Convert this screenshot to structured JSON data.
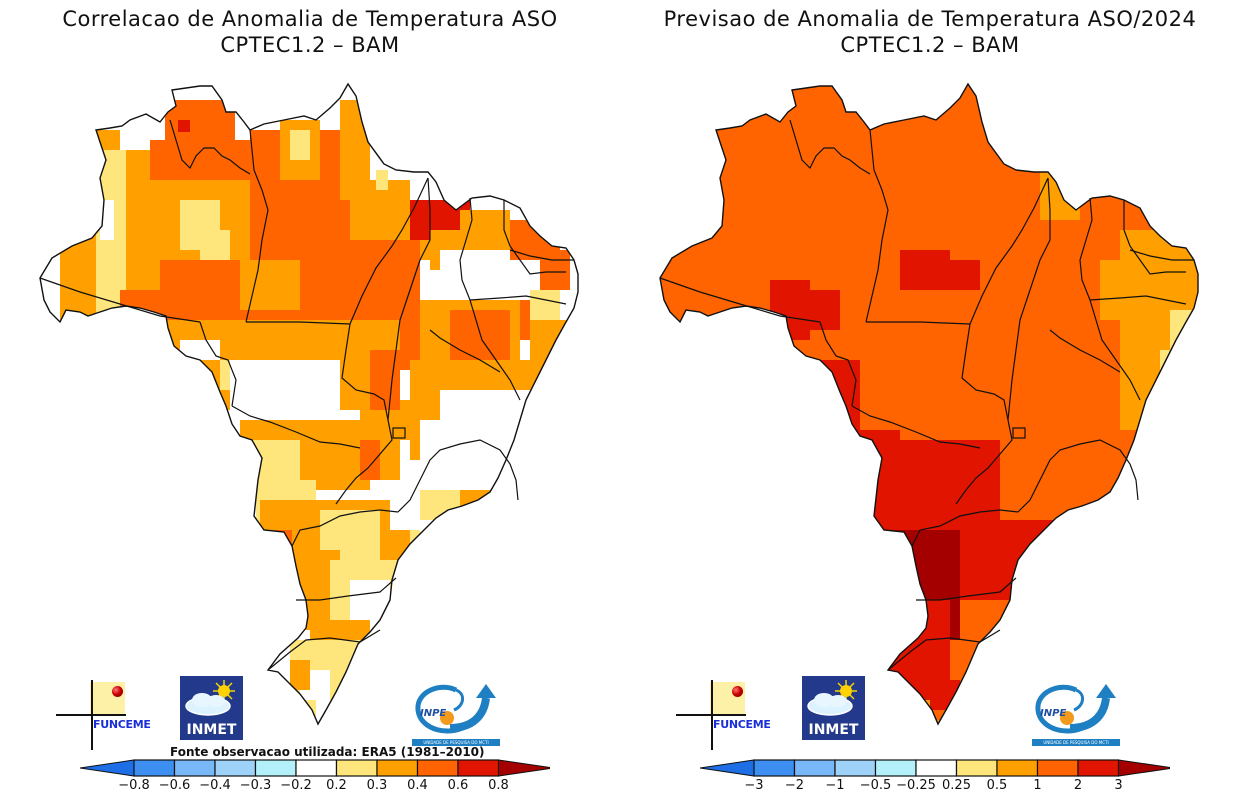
{
  "chart_data": [
    {
      "type": "heatmap",
      "title": "Correlacao de Anomalia de Temperatura ASO",
      "subtitle": "CPTEC1.2 - BAM",
      "region": "Brazil",
      "variable": "correlation of temperature anomaly",
      "note": "Fonte observacao utilizada: ERA5 (1981-2010)",
      "colorbar": {
        "ticks": [
          "-0.8",
          "-0.6",
          "-0.4",
          "-0.3",
          "-0.2",
          "0.2",
          "0.3",
          "0.4",
          "0.6",
          "0.8"
        ],
        "bins": [
          {
            "range": "< -0.8",
            "color": "#1e6ee6"
          },
          {
            "range": "-0.8 to -0.6",
            "color": "#3c8ff0"
          },
          {
            "range": "-0.6 to -0.4",
            "color": "#78b8f8"
          },
          {
            "range": "-0.4 to -0.3",
            "color": "#9ed2f8"
          },
          {
            "range": "-0.3 to -0.2",
            "color": "#b4f0fa"
          },
          {
            "range": "-0.2 to 0.2",
            "color": "#ffffff"
          },
          {
            "range": "0.2 to 0.3",
            "color": "#fee67c"
          },
          {
            "range": "0.3 to 0.4",
            "color": "#ffa000"
          },
          {
            "range": "0.4 to 0.6",
            "color": "#ff6400"
          },
          {
            "range": "0.6 to 0.8",
            "color": "#e11400"
          },
          {
            "range": "> 0.8",
            "color": "#a50000"
          }
        ]
      },
      "regions": [
        {
          "area": "Amazonas (north/central)",
          "bin": "0.3 to 0.4"
        },
        {
          "area": "Amazonas (west edge)",
          "bin": "0.2 to 0.3"
        },
        {
          "area": "Acre",
          "bin": "-0.2 to 0.2"
        },
        {
          "area": "Roraima",
          "bin": "0.4 to 0.6"
        },
        {
          "area": "Para",
          "bin": "0.4 to 0.6"
        },
        {
          "area": "Amapa",
          "bin": "0.3 to 0.4"
        },
        {
          "area": "Maranhao (north coast)",
          "bin": "0.6 to 0.8"
        },
        {
          "area": "Piaui / Ceara interior",
          "bin": "-0.2 to 0.2"
        },
        {
          "area": "Mato Grosso (north)",
          "bin": "0.3 to 0.4"
        },
        {
          "area": "Mato Grosso (central)",
          "bin": "-0.2 to 0.2"
        },
        {
          "area": "Goias / Tocantins",
          "bin": "0.3 to 0.4"
        },
        {
          "area": "Minas Gerais",
          "bin": "-0.2 to 0.2"
        },
        {
          "area": "Mato Grosso do Sul",
          "bin": "0.3 to 0.4"
        },
        {
          "area": "Sao Paulo",
          "bin": "0.2 to 0.3"
        },
        {
          "area": "Parana / Santa Catarina",
          "bin": "0.2 to 0.3"
        },
        {
          "area": "Rio Grande do Sul",
          "bin": "0.2 to 0.3"
        }
      ]
    },
    {
      "type": "heatmap",
      "title": "Previsao de Anomalia de Temperatura ASO/2024",
      "subtitle": "CPTEC1.2 - BAM",
      "region": "Brazil",
      "variable": "forecast temperature anomaly",
      "colorbar": {
        "ticks": [
          "-3",
          "-2",
          "-1",
          "-0.5",
          "-0.25",
          "0.25",
          "0.5",
          "1",
          "2",
          "3"
        ],
        "bins": [
          {
            "range": "< -3",
            "color": "#1e6ee6"
          },
          {
            "range": "-3 to -2",
            "color": "#3c8ff0"
          },
          {
            "range": "-2 to -1",
            "color": "#78b8f8"
          },
          {
            "range": "-1 to -0.5",
            "color": "#9ed2f8"
          },
          {
            "range": "-0.5 to -0.25",
            "color": "#b4f0fa"
          },
          {
            "range": "-0.25 to 0.25",
            "color": "#ffffff"
          },
          {
            "range": "0.25 to 0.5",
            "color": "#fee67c"
          },
          {
            "range": "0.5 to 1",
            "color": "#ffa000"
          },
          {
            "range": "1 to 2",
            "color": "#ff6400"
          },
          {
            "range": "2 to 3",
            "color": "#e11400"
          },
          {
            "range": "> 3",
            "color": "#a50000"
          }
        ]
      },
      "regions": [
        {
          "area": "North (Amazonas, Para, Roraima, Amapa)",
          "bin": "1 to 2"
        },
        {
          "area": "Para (central patch)",
          "bin": "2 to 3"
        },
        {
          "area": "Rondonia (west patch)",
          "bin": "2 to 3"
        },
        {
          "area": "Northeast coast",
          "bin": "0.5 to 1"
        },
        {
          "area": "Mato Grosso (west/south)",
          "bin": "2 to 3"
        },
        {
          "area": "Goias (south)",
          "bin": "2 to 3"
        },
        {
          "area": "Mato Grosso do Sul (central)",
          "bin": "> 3"
        },
        {
          "area": "Sao Paulo / Parana",
          "bin": "2 to 3"
        },
        {
          "area": "Rio Grande do Sul",
          "bin": "1 to 2"
        }
      ]
    }
  ],
  "panels": {
    "left": {
      "title_line1": "Correlacao de Anomalia de Temperatura ASO",
      "title_line2": "CPTEC1.2 – BAM",
      "source_note": "Fonte observacao utilizada: ERA5 (1981–2010)",
      "ticks": [
        "−0.8",
        "−0.6",
        "−0.4",
        "−0.3",
        "−0.2",
        "0.2",
        "0.3",
        "0.4",
        "0.6",
        "0.8"
      ]
    },
    "right": {
      "title_line1": "Previsao de Anomalia de Temperatura ASO/2024",
      "title_line2": "CPTEC1.2 – BAM",
      "ticks": [
        "−3",
        "−2",
        "−1",
        "−0.5",
        "−0.25",
        "0.25",
        "0.5",
        "1",
        "2",
        "3"
      ]
    }
  },
  "colors": [
    "#1e6ee6",
    "#3c8ff0",
    "#78b8f8",
    "#9ed2f8",
    "#b4f0fa",
    "#ffffff",
    "#fee67c",
    "#ffa000",
    "#ff6400",
    "#e11400",
    "#a50000"
  ],
  "logos": {
    "funceme": "FUNCEME",
    "inmet": "INMET",
    "inpe": "INPE",
    "inpe_band": "UNIDADE DE PESQUISA DO MCTI"
  }
}
